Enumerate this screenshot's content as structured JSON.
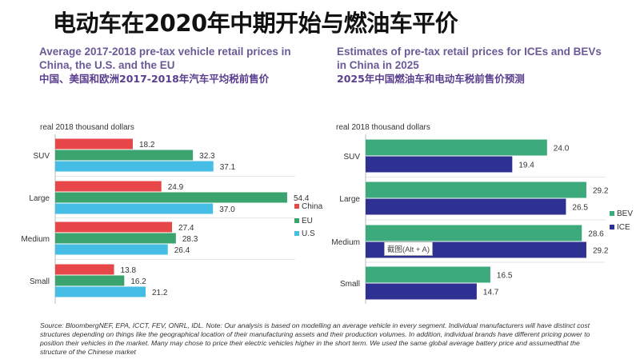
{
  "title": "电动车在2020年中期开始与燃油车平价",
  "left_subtitle": {
    "en": "Average 2017-2018 pre-tax vehicle retail prices in China, the U.S. and the EU",
    "cn": "中国、美国和欧洲2017-2018年汽车平均税前售价"
  },
  "right_subtitle": {
    "en": "Estimates of pre-tax retail prices for ICEs and BEVs in China in 2025",
    "cn": "2025年中国燃油车和电动车税前售价预测"
  },
  "tooltip": "截图(Alt + A)",
  "footer": "Source: BloombergNEF, EPA, ICCT, FEV, ONRL, IDL. Note: Our analysis is based on modelling an average vehicle in every segment. Individual manufacturers will have distinct cost structures depending on things like the geographical location of their manufacturing assets and their production volumes. In addition, individual brands have different pricing power to position their vehicles in the market. Many may chose to price their electric vehicles higher in the short term. We used the same global average battery price and assumedthat the structure of the Chinese market",
  "chart_data": [
    {
      "type": "bar",
      "orientation": "horizontal",
      "ylabel": "real 2018 thousand dollars",
      "categories": [
        "SUV",
        "Large",
        "Medium",
        "Small"
      ],
      "series": [
        {
          "name": "China",
          "color": "#e8474a",
          "values": [
            18.2,
            24.9,
            27.4,
            13.8
          ]
        },
        {
          "name": "EU",
          "color": "#3aa36e",
          "values": [
            32.3,
            54.4,
            28.3,
            16.2
          ]
        },
        {
          "name": "U.S",
          "color": "#45bde5",
          "values": [
            37.1,
            37.0,
            26.4,
            21.2
          ]
        }
      ],
      "value_labels": [
        [
          "18.2",
          "24.9",
          "27.4",
          "13.8"
        ],
        [
          "32.3",
          "54.4",
          "28.3",
          "16.2"
        ],
        [
          "37.1",
          "37.0",
          "26.4",
          "21.2"
        ]
      ],
      "legend": "right"
    },
    {
      "type": "bar",
      "orientation": "horizontal",
      "ylabel": "real 2018 thousand dollars",
      "categories": [
        "SUV",
        "Large",
        "Medium",
        "Small"
      ],
      "series": [
        {
          "name": "BEV",
          "color": "#3daa7c",
          "values": [
            24.0,
            29.2,
            28.6,
            16.5
          ]
        },
        {
          "name": "ICE",
          "color": "#2f3192",
          "values": [
            19.4,
            26.5,
            29.2,
            14.7
          ]
        }
      ],
      "value_labels": [
        [
          "24.0",
          "29.2",
          "28.6",
          "16.5"
        ],
        [
          "19.4",
          "26.5",
          "29.2",
          "14.7"
        ]
      ],
      "legend": "right"
    }
  ]
}
